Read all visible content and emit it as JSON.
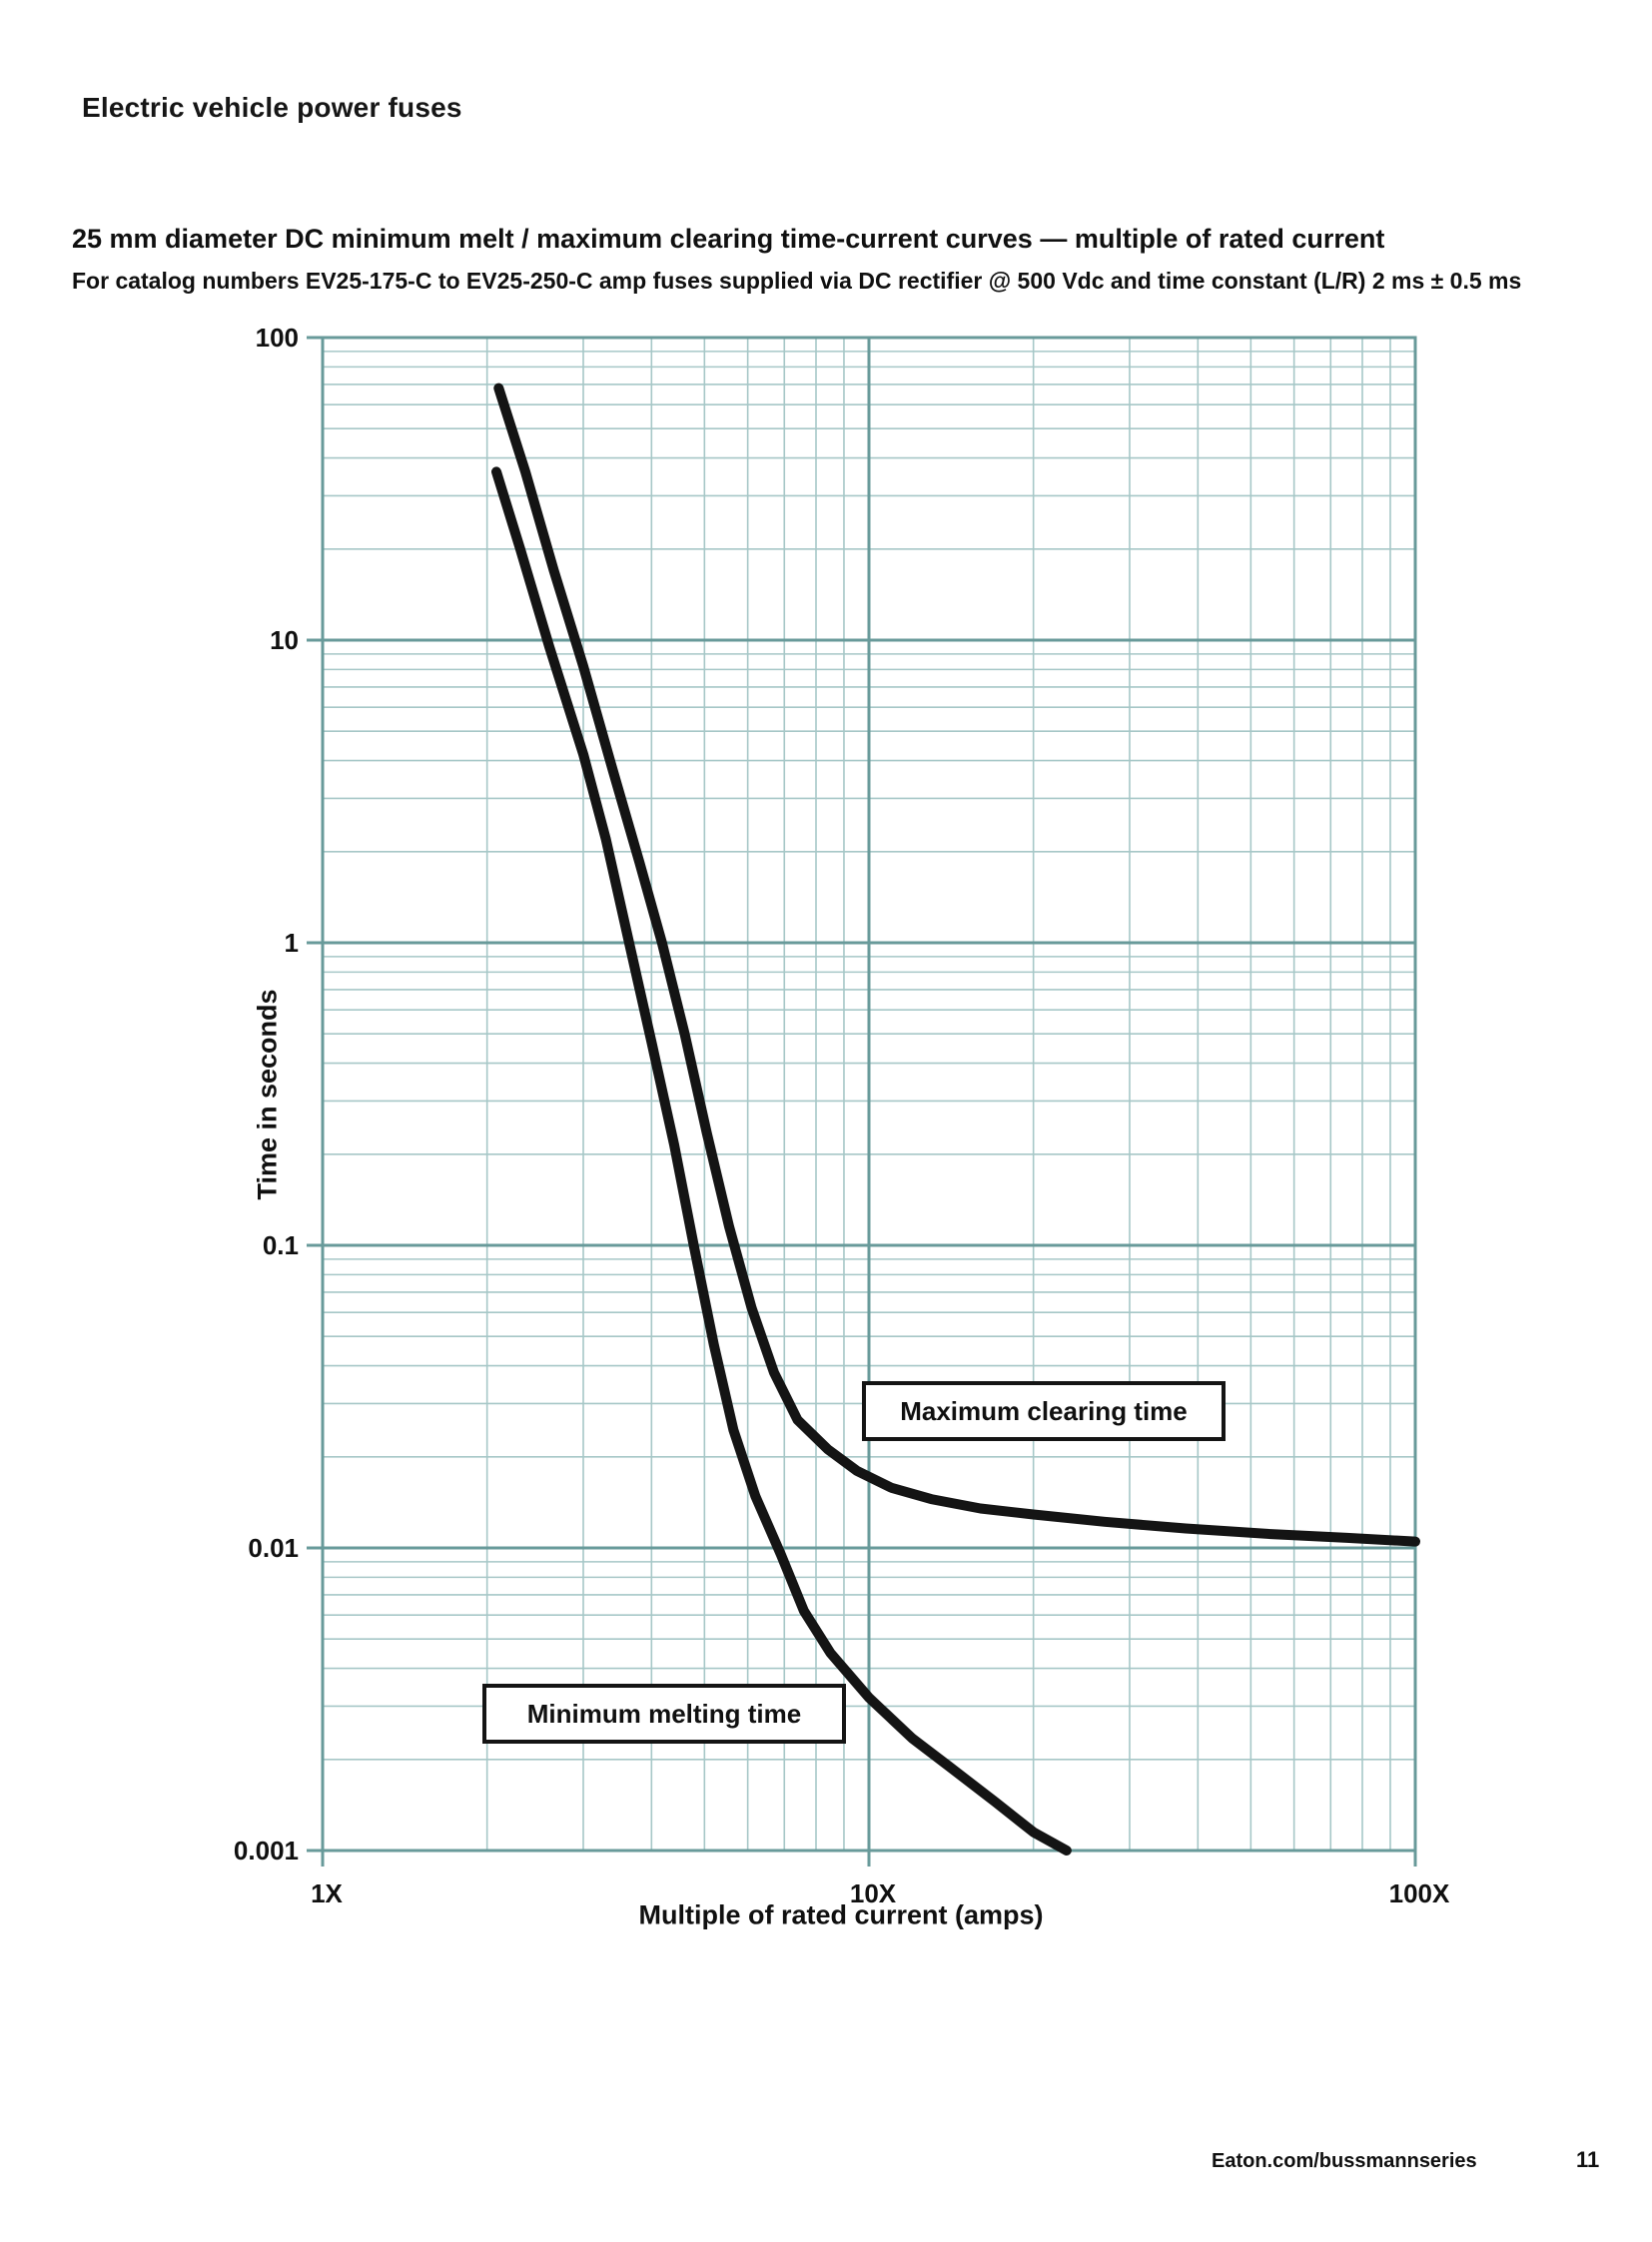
{
  "page": {
    "header": "Electric vehicle power fuses",
    "title": "25 mm diameter DC minimum melt / maximum clearing time-current curves — multiple of rated current",
    "subtitle": "For catalog numbers EV25-175-C to EV25-250-C amp fuses supplied via DC rectifier @ 500 Vdc and time constant (L/R) 2 ms ± 0.5 ms",
    "footer": {
      "link": "Eaton.com/bussmannseries",
      "page_number": "11"
    }
  },
  "chart_data": {
    "type": "line",
    "x_scale": "log",
    "y_scale": "log",
    "xlabel": "Multiple of rated current (amps)",
    "ylabel": "Time in seconds",
    "xlim": [
      1,
      100
    ],
    "ylim": [
      0.001,
      100
    ],
    "grid": "log major and minor gridlines, teal, on",
    "legend_position": "inline boxed annotations",
    "x_ticks": [
      {
        "label": "1X",
        "value": 1
      },
      {
        "label": "10X",
        "value": 10
      },
      {
        "label": "100X",
        "value": 100
      }
    ],
    "y_ticks": [
      {
        "label": "100",
        "value": 100
      },
      {
        "label": "10",
        "value": 10
      },
      {
        "label": "1",
        "value": 1
      },
      {
        "label": "0.1",
        "value": 0.1
      },
      {
        "label": "0.01",
        "value": 0.01
      },
      {
        "label": "0.001",
        "value": 0.001
      }
    ],
    "colors": {
      "curve": "#141414",
      "grid_major": "#689a9a",
      "grid_minor": "#a6c7c7",
      "label_text": "#101010"
    },
    "series": [
      {
        "name": "Maximum clearing time",
        "points": [
          [
            2.1,
            68
          ],
          [
            2.35,
            36
          ],
          [
            2.65,
            17
          ],
          [
            3.0,
            8.2
          ],
          [
            3.4,
            3.7
          ],
          [
            3.8,
            1.85
          ],
          [
            4.18,
            1.0
          ],
          [
            4.6,
            0.5
          ],
          [
            5.05,
            0.235
          ],
          [
            5.55,
            0.115
          ],
          [
            6.1,
            0.062
          ],
          [
            6.7,
            0.038
          ],
          [
            7.4,
            0.0265
          ],
          [
            8.4,
            0.0212
          ],
          [
            9.5,
            0.018
          ],
          [
            11,
            0.0158
          ],
          [
            13,
            0.0145
          ],
          [
            16,
            0.0135
          ],
          [
            20,
            0.0129
          ],
          [
            27,
            0.0122
          ],
          [
            38,
            0.0116
          ],
          [
            55,
            0.0111
          ],
          [
            75,
            0.0108
          ],
          [
            100,
            0.0105
          ]
        ]
      },
      {
        "name": "Minimum melting time",
        "points": [
          [
            2.08,
            36
          ],
          [
            2.3,
            20
          ],
          [
            2.6,
            9.5
          ],
          [
            3.0,
            4.2
          ],
          [
            3.3,
            2.2
          ],
          [
            3.64,
            1.0
          ],
          [
            4.0,
            0.47
          ],
          [
            4.4,
            0.215
          ],
          [
            4.78,
            0.1
          ],
          [
            5.2,
            0.047
          ],
          [
            5.65,
            0.0245
          ],
          [
            6.2,
            0.0148
          ],
          [
            6.9,
            0.0095
          ],
          [
            7.6,
            0.0062
          ],
          [
            8.5,
            0.0045
          ],
          [
            10,
            0.0032
          ],
          [
            12,
            0.00235
          ],
          [
            14,
            0.0019
          ],
          [
            17,
            0.00145
          ],
          [
            20,
            0.00115
          ],
          [
            23,
            0.001
          ]
        ]
      }
    ]
  }
}
